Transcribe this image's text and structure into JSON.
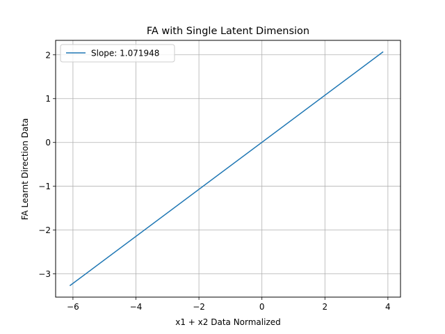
{
  "chart_data": {
    "type": "line",
    "title": "FA with Single Latent Dimension",
    "xlabel": "x1 + x2 Data Normalized",
    "ylabel": "FA Learnt Direction Data",
    "xlim": [
      -6.55,
      4.4
    ],
    "ylim": [
      -3.53,
      2.33
    ],
    "xticks": [
      -6,
      -4,
      -2,
      0,
      2,
      4
    ],
    "yticks": [
      -3,
      -2,
      -1,
      0,
      1,
      2
    ],
    "xtick_labels": [
      "−6",
      "−4",
      "−2",
      "0",
      "2",
      "4"
    ],
    "ytick_labels": [
      "−3",
      "−2",
      "−1",
      "0",
      "1",
      "2"
    ],
    "grid": true,
    "legend_position": "top-left",
    "series": [
      {
        "name": "Slope: 1.071948",
        "color": "#1f77b4",
        "x": [
          -6.1,
          3.85
        ],
        "y": [
          -3.27,
          2.07
        ]
      }
    ]
  }
}
